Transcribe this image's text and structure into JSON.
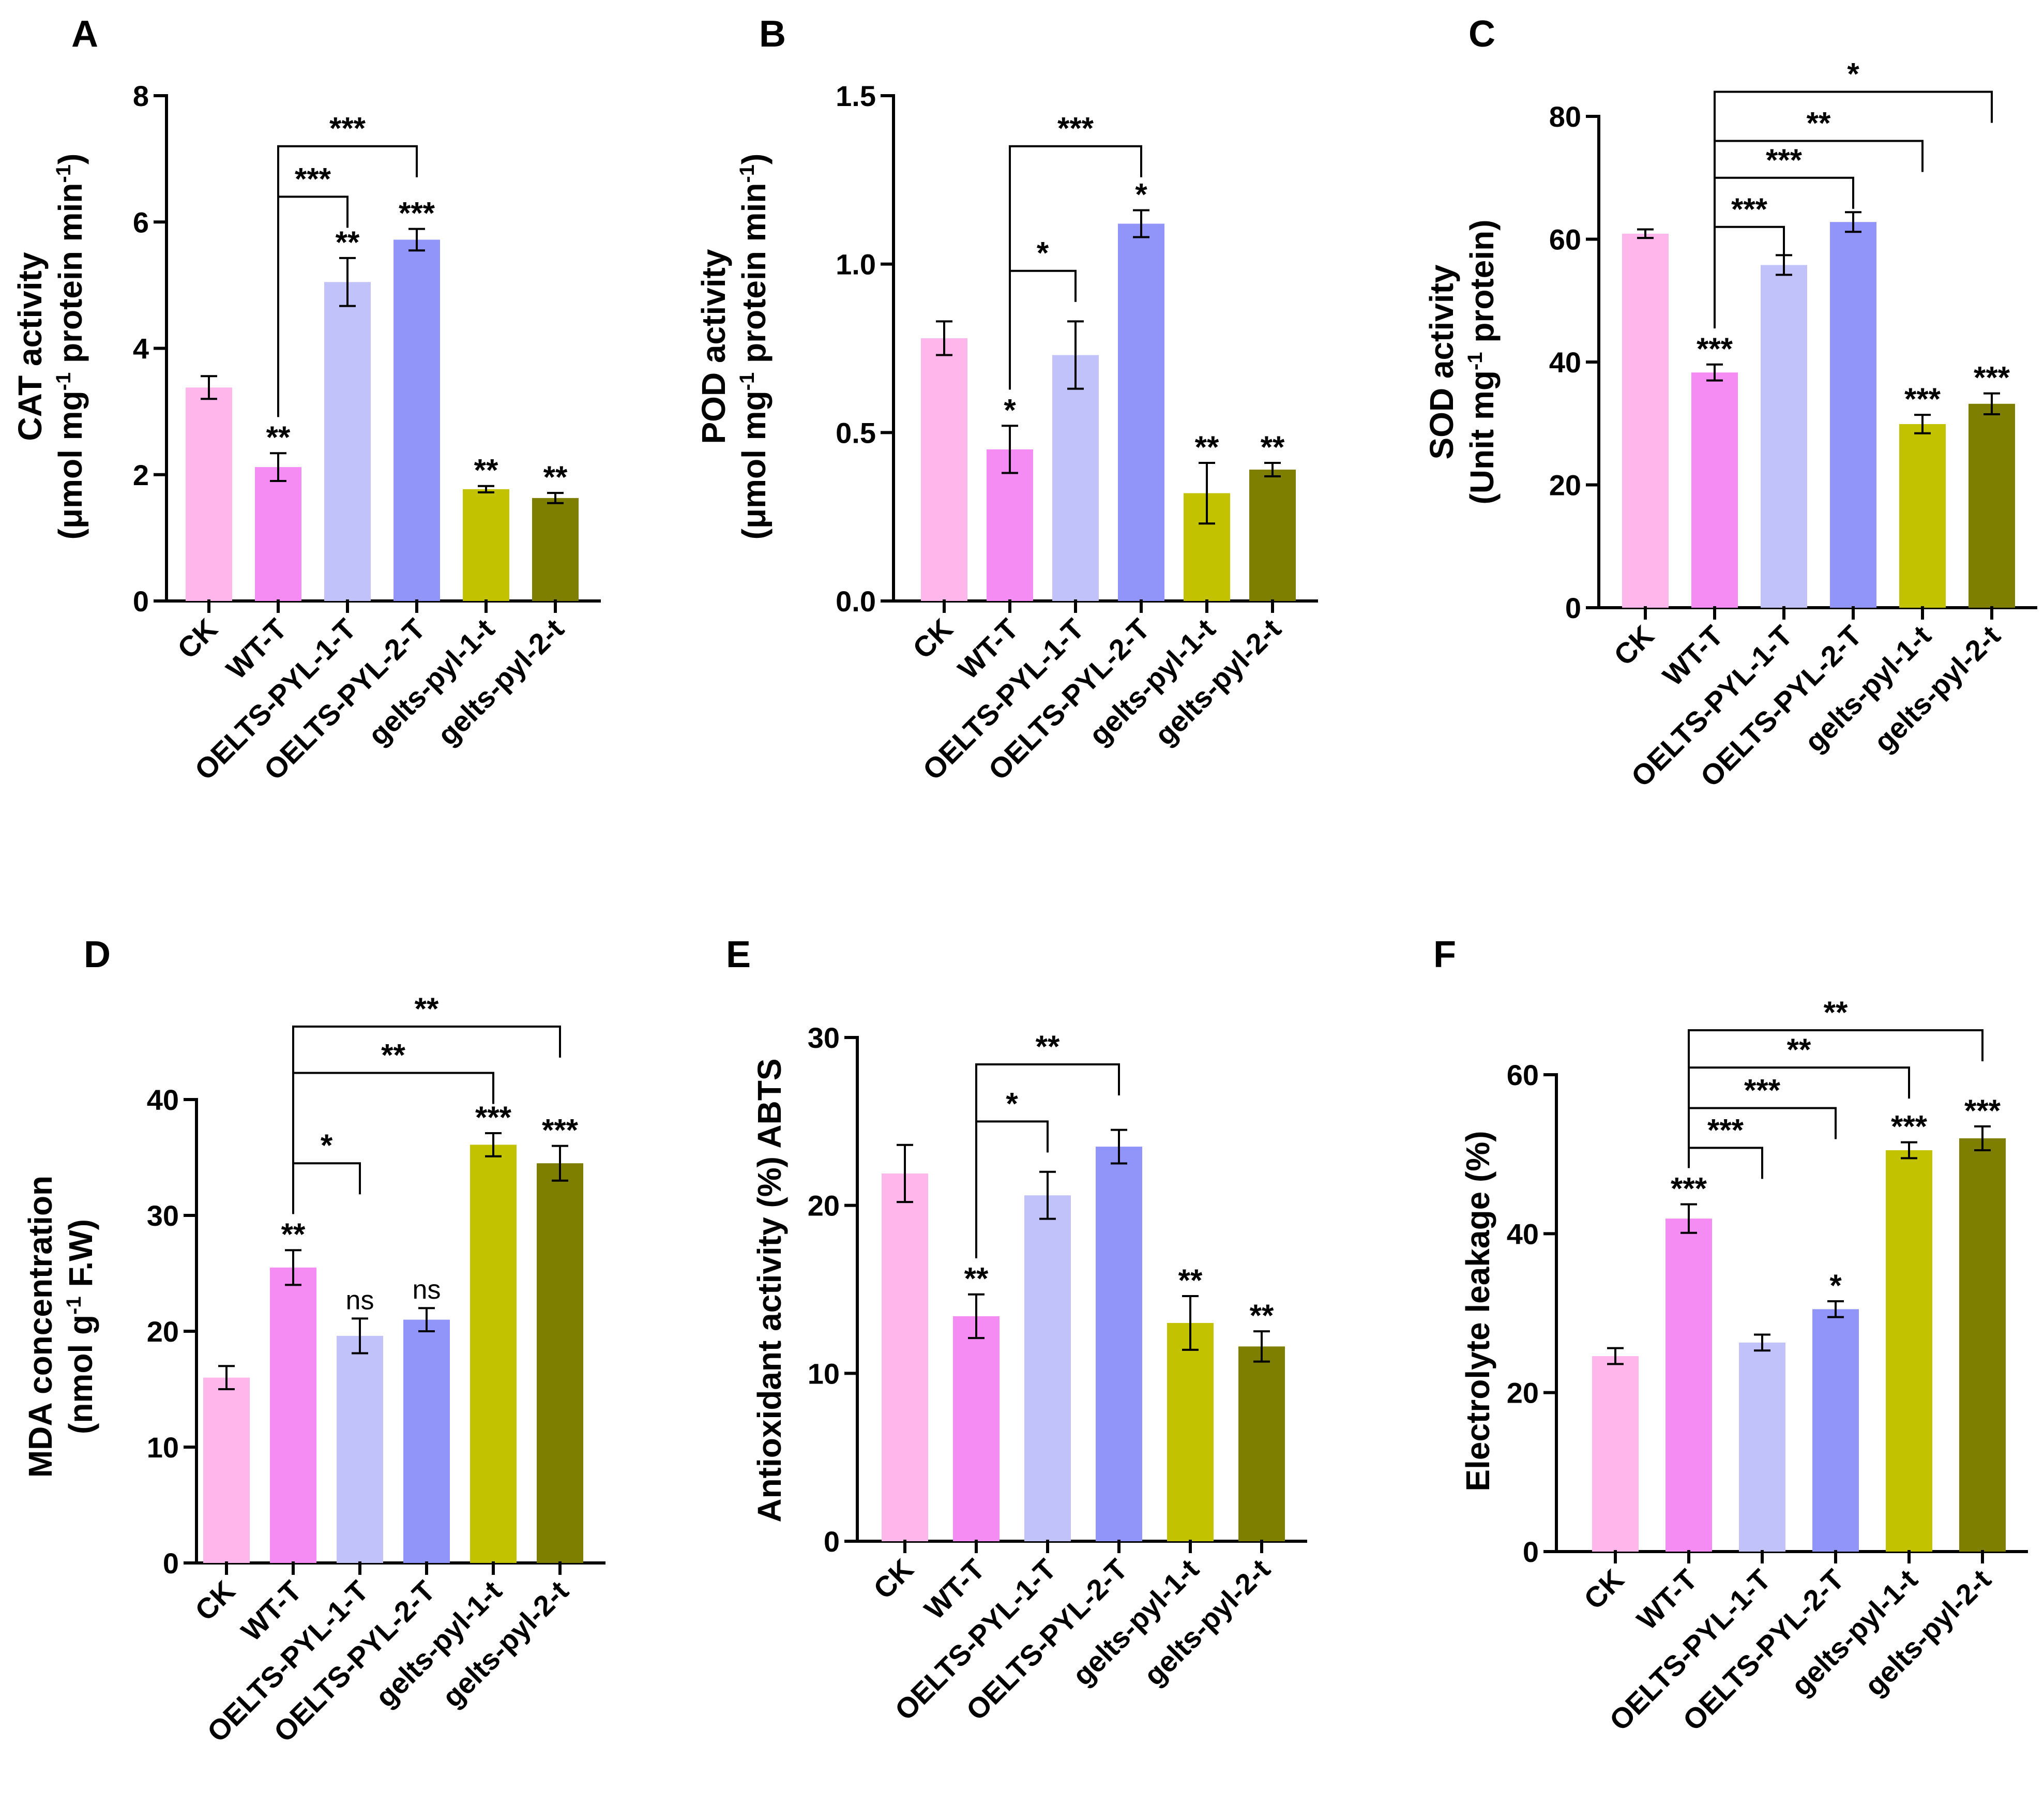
{
  "colors": [
    "#ffb6ea",
    "#f48cf3",
    "#c2c2fb",
    "#9194f9",
    "#c3c200",
    "#7e7e00"
  ],
  "chart_data": [
    {
      "panel": "A",
      "type": "bar",
      "ylabel_line1": "CAT activity",
      "ylabel_line2_pre": "(μmol mg",
      "ylabel_line2_sup": "-1",
      "ylabel_line2_mid": " protein min",
      "ylabel_line2_sup2": "-1",
      "ylabel_line2_post": ")",
      "categories": [
        "CK",
        "WT-T",
        "OELTS-PYL-1-T",
        "OELTS-PYL-2-T",
        "gelts-pyl-1-t",
        "gelts-pyl-2-t"
      ],
      "values": [
        3.38,
        2.12,
        5.05,
        5.72,
        1.77,
        1.63
      ],
      "errors": [
        0.18,
        0.22,
        0.38,
        0.17,
        0.05,
        0.08
      ],
      "ylim": [
        0,
        8
      ],
      "yticks": [
        "0",
        "2",
        "4",
        "6",
        "8"
      ],
      "tickvals": [
        0,
        2,
        4,
        6,
        8
      ],
      "annotations": [
        "",
        "**",
        "**",
        "***",
        "**",
        "**"
      ],
      "brackets": [
        {
          "from": 1,
          "to": 2,
          "y": 6.4,
          "label": "***"
        },
        {
          "from": 1,
          "to": 3,
          "y": 7.2,
          "label": "***"
        }
      ]
    },
    {
      "panel": "B",
      "type": "bar",
      "ylabel_line1": "POD activity",
      "ylabel_line2_pre": "(μmol mg",
      "ylabel_line2_sup": "-1",
      "ylabel_line2_mid": " protein min",
      "ylabel_line2_sup2": "-1",
      "ylabel_line2_post": ")",
      "categories": [
        "CK",
        "WT-T",
        "OELTS-PYL-1-T",
        "OELTS-PYL-2-T",
        "gelts-pyl-1-t",
        "gelts-pyl-2-t"
      ],
      "values": [
        0.78,
        0.45,
        0.73,
        1.12,
        0.32,
        0.39
      ],
      "errors": [
        0.05,
        0.07,
        0.1,
        0.04,
        0.09,
        0.02
      ],
      "ylim": [
        0,
        1.5
      ],
      "yticks": [
        "0.0",
        "0.5",
        "1.0",
        "1.5"
      ],
      "tickvals": [
        0,
        0.5,
        1.0,
        1.5
      ],
      "annotations": [
        "",
        "*",
        "",
        "*",
        "**",
        "**"
      ],
      "brackets": [
        {
          "from": 1,
          "to": 2,
          "y": 0.98,
          "label": "*"
        },
        {
          "from": 1,
          "to": 3,
          "y": 1.35,
          "label": "***"
        }
      ]
    },
    {
      "panel": "C",
      "type": "bar",
      "ylabel_line1": "SOD activity",
      "ylabel_line2_pre": "(Unit mg",
      "ylabel_line2_sup": "-1",
      "ylabel_line2_mid": " protein)",
      "ylabel_line2_sup2": "",
      "ylabel_line2_post": "",
      "categories": [
        "CK",
        "WT-T",
        "OELTS-PYL-1-T",
        "OELTS-PYL-2-T",
        "gelts-pyl-1-t",
        "gelts-pyl-2-t"
      ],
      "values": [
        60.9,
        38.3,
        55.8,
        62.8,
        29.9,
        33.2
      ],
      "errors": [
        0.7,
        1.3,
        1.6,
        1.6,
        1.5,
        1.7
      ],
      "ylim": [
        0,
        80
      ],
      "yticks": [
        "0",
        "20",
        "40",
        "60",
        "80"
      ],
      "tickvals": [
        0,
        20,
        40,
        60,
        80
      ],
      "annotations": [
        "",
        "***",
        "",
        "",
        "***",
        "***"
      ],
      "brackets": [
        {
          "from": 1,
          "to": 2,
          "y": 62,
          "label": "***"
        },
        {
          "from": 1,
          "to": 3,
          "y": 70,
          "label": "***"
        },
        {
          "from": 1,
          "to": 4,
          "y": 76,
          "label": "**"
        },
        {
          "from": 1,
          "to": 5,
          "y": 84,
          "label": "*"
        }
      ]
    },
    {
      "panel": "D",
      "type": "bar",
      "ylabel_line1": "MDA concentration",
      "ylabel_line2_pre": "(nmol g",
      "ylabel_line2_sup": "-1",
      "ylabel_line2_mid": " F.W)",
      "ylabel_line2_sup2": "",
      "ylabel_line2_post": "",
      "categories": [
        "CK",
        "WT-T",
        "OELTS-PYL-1-T",
        "OELTS-PYL-2-T",
        "gelts-pyl-1-t",
        "gelts-pyl-2-t"
      ],
      "values": [
        16.0,
        25.5,
        19.6,
        21.0,
        36.1,
        34.5
      ],
      "errors": [
        1.0,
        1.5,
        1.5,
        1.0,
        1.0,
        1.5
      ],
      "ylim": [
        0,
        40
      ],
      "yticks": [
        "0",
        "10",
        "20",
        "30",
        "40"
      ],
      "tickvals": [
        0,
        10,
        20,
        30,
        40
      ],
      "annotations": [
        "",
        "**",
        "ns",
        "ns",
        "***",
        "***"
      ],
      "brackets": [
        {
          "from": 1,
          "to": 2,
          "y": 34.5,
          "label": "*"
        },
        {
          "from": 1,
          "to": 4,
          "y": 42.3,
          "label": "**"
        },
        {
          "from": 1,
          "to": 5,
          "y": 46.3,
          "label": "**"
        }
      ]
    },
    {
      "panel": "E",
      "type": "bar",
      "ylabel_line1": "Antioxidant activity (%) ABTS",
      "ylabel_line2_pre": "",
      "ylabel_line2_sup": "",
      "ylabel_line2_mid": "",
      "ylabel_line2_sup2": "",
      "ylabel_line2_post": "",
      "categories": [
        "CK",
        "WT-T",
        "OELTS-PYL-1-T",
        "OELTS-PYL-2-T",
        "gelts-pyl-1-t",
        "gelts-pyl-2-t"
      ],
      "values": [
        21.9,
        13.4,
        20.6,
        23.5,
        13.0,
        11.6
      ],
      "errors": [
        1.7,
        1.3,
        1.4,
        1.0,
        1.6,
        0.9
      ],
      "ylim": [
        0,
        30
      ],
      "yticks": [
        "0",
        "10",
        "20",
        "30"
      ],
      "tickvals": [
        0,
        10,
        20,
        30
      ],
      "annotations": [
        "",
        "**",
        "",
        "",
        "**",
        "**"
      ],
      "brackets": [
        {
          "from": 1,
          "to": 2,
          "y": 25.0,
          "label": "*"
        },
        {
          "from": 1,
          "to": 3,
          "y": 28.4,
          "label": "**"
        }
      ]
    },
    {
      "panel": "F",
      "type": "bar",
      "ylabel_line1": "Electrolyte leakage (%)",
      "ylabel_line2_pre": "",
      "ylabel_line2_sup": "",
      "ylabel_line2_mid": "",
      "ylabel_line2_sup2": "",
      "ylabel_line2_post": "",
      "categories": [
        "CK",
        "WT-T",
        "OELTS-PYL-1-T",
        "OELTS-PYL-2-T",
        "gelts-pyl-1-t",
        "gelts-pyl-2-t"
      ],
      "values": [
        24.6,
        41.9,
        26.3,
        30.5,
        50.5,
        52.0
      ],
      "errors": [
        1.0,
        1.8,
        1.0,
        1.0,
        1.0,
        1.5
      ],
      "ylim": [
        0,
        60
      ],
      "yticks": [
        "0",
        "20",
        "40",
        "60"
      ],
      "tickvals": [
        0,
        20,
        40,
        60
      ],
      "annotations": [
        "",
        "***",
        "",
        "*",
        "***",
        "***"
      ],
      "brackets": [
        {
          "from": 1,
          "to": 2,
          "y": 50.8,
          "label": "***"
        },
        {
          "from": 1,
          "to": 3,
          "y": 55.8,
          "label": "***"
        },
        {
          "from": 1,
          "to": 4,
          "y": 60.9,
          "label": "**"
        },
        {
          "from": 1,
          "to": 5,
          "y": 65.6,
          "label": "**"
        }
      ]
    }
  ]
}
